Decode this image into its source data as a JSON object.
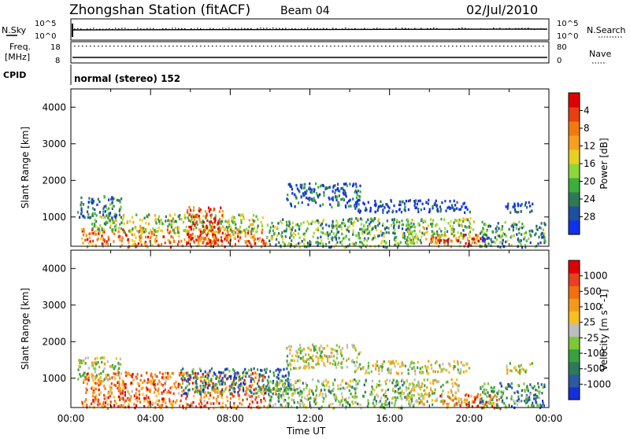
{
  "header": {
    "station": "Zhongshan Station (fitACF)",
    "beam": "Beam 04",
    "date": "02/Jul/2010"
  },
  "status_panels": {
    "nsky_label": "N.Sky",
    "nsearch_label": "N.Search",
    "noise_ticks_left": [
      "10^5",
      "10^0"
    ],
    "noise_ticks_right": [
      "10^5",
      "10^0"
    ],
    "freq_label_1": "Freq.",
    "freq_label_2": "[MHz]",
    "freq_ticks": [
      "18",
      "8"
    ],
    "nave_label": "Nave",
    "nave_ticks": [
      "80",
      "0"
    ],
    "cpid_label": "CPID",
    "cpid_value": "normal (stereo) 152"
  },
  "chart_data": [
    {
      "type": "heatmap",
      "panel": "power",
      "ylabel": "Slant Range [km]",
      "ylim": [
        200,
        4500
      ],
      "yticks": [
        1000,
        2000,
        3000,
        4000
      ],
      "xlabel": "Time UT",
      "xlim": [
        0,
        24
      ],
      "xtick_labels": [
        "00:00",
        "04:00",
        "08:00",
        "12:00",
        "16:00",
        "20:00",
        "00:00"
      ],
      "colorbar": {
        "label": "Power [dB]",
        "tick_labels": [
          "4",
          "8",
          "12",
          "16",
          "20",
          "24",
          "28"
        ],
        "colors": [
          "#1030f0",
          "#1e4ea0",
          "#2f7a55",
          "#3cae3c",
          "#8fd63a",
          "#e8d020",
          "#f7a020",
          "#f07a10",
          "#e84010",
          "#e00000"
        ]
      },
      "echo_regions": [
        {
          "t0": 0.5,
          "t1": 9.8,
          "r0": 200,
          "r1": 700,
          "level": 0.75
        },
        {
          "t0": 1.0,
          "t1": 9.6,
          "r0": 600,
          "r1": 1100,
          "level": 0.45
        },
        {
          "t0": 5.8,
          "t1": 7.6,
          "r0": 300,
          "r1": 1300,
          "level": 0.85
        },
        {
          "t0": 0.3,
          "t1": 2.5,
          "r0": 1000,
          "r1": 1600,
          "level": 0.2
        },
        {
          "t0": 9.8,
          "t1": 17.2,
          "r0": 200,
          "r1": 1000,
          "level": 0.35
        },
        {
          "t0": 10.8,
          "t1": 14.5,
          "r0": 1300,
          "r1": 1950,
          "level": 0.15
        },
        {
          "t0": 14.2,
          "t1": 20.0,
          "r0": 1150,
          "r1": 1500,
          "level": 0.08
        },
        {
          "t0": 16.8,
          "t1": 20.2,
          "r0": 300,
          "r1": 1000,
          "level": 0.4
        },
        {
          "t0": 18.0,
          "t1": 20.8,
          "r0": 200,
          "r1": 550,
          "level": 0.8
        },
        {
          "t0": 20.5,
          "t1": 23.8,
          "r0": 200,
          "r1": 900,
          "level": 0.3
        },
        {
          "t0": 21.8,
          "t1": 23.2,
          "r0": 1150,
          "r1": 1450,
          "level": 0.05
        }
      ]
    },
    {
      "type": "heatmap",
      "panel": "velocity",
      "ylabel": "Slant Range [km]",
      "ylim": [
        200,
        4500
      ],
      "yticks": [
        1000,
        2000,
        3000,
        4000
      ],
      "xlabel": "Time UT",
      "xlim": [
        0,
        24
      ],
      "xtick_labels": [
        "00:00",
        "04:00",
        "08:00",
        "12:00",
        "16:00",
        "20:00",
        "00:00"
      ],
      "colorbar": {
        "label": "Velocity [m s^-1]",
        "tick_labels": [
          "1000",
          "500",
          "100",
          "25",
          "-25",
          "-100",
          "-500",
          "-1000"
        ],
        "colors": [
          "#1530d8",
          "#2a5aa0",
          "#2d7a5a",
          "#3aa040",
          "#7cc83a",
          "#bebebe",
          "#f5c020",
          "#f59a18",
          "#f07010",
          "#e84020",
          "#e00000"
        ]
      },
      "echo_regions": [
        {
          "t0": 0.5,
          "t1": 9.8,
          "r0": 200,
          "r1": 1200,
          "level": 0.75
        },
        {
          "t0": 5.5,
          "t1": 11.0,
          "r0": 600,
          "r1": 1300,
          "level": 0.2
        },
        {
          "t0": 0.3,
          "t1": 2.5,
          "r0": 1000,
          "r1": 1600,
          "level": 0.5
        },
        {
          "t0": 9.8,
          "t1": 17.2,
          "r0": 200,
          "r1": 1000,
          "level": 0.4
        },
        {
          "t0": 10.8,
          "t1": 14.5,
          "r0": 1300,
          "r1": 1950,
          "level": 0.5
        },
        {
          "t0": 14.2,
          "t1": 20.0,
          "r0": 1150,
          "r1": 1500,
          "level": 0.5
        },
        {
          "t0": 16.8,
          "t1": 19.5,
          "r0": 300,
          "r1": 1000,
          "level": 0.5
        },
        {
          "t0": 18.5,
          "t1": 21.5,
          "r0": 200,
          "r1": 600,
          "level": 0.8
        },
        {
          "t0": 20.5,
          "t1": 23.8,
          "r0": 200,
          "r1": 900,
          "level": 0.3
        },
        {
          "t0": 21.8,
          "t1": 23.2,
          "r0": 1150,
          "r1": 1450,
          "level": 0.5
        }
      ]
    }
  ]
}
